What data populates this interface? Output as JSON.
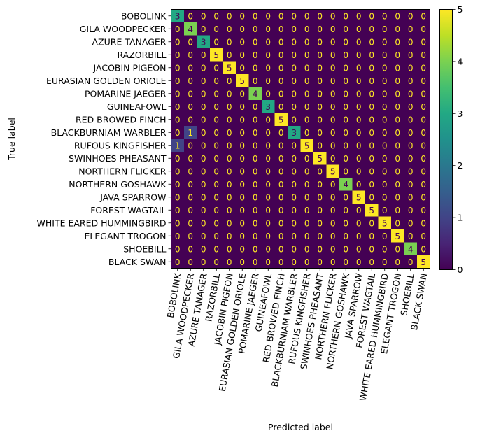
{
  "chart_data": {
    "type": "heatmap",
    "title": "",
    "xlabel": "Predicted label",
    "ylabel": "True label",
    "labels": [
      "BOBOLINK",
      "GILA WOODPECKER",
      "AZURE TANAGER",
      "RAZORBILL",
      "JACOBIN PIGEON",
      "EURASIAN GOLDEN ORIOLE",
      "POMARINE JAEGER",
      "GUINEAFOWL",
      "RED BROWED FINCH",
      "BLACKBURNIAM WARBLER",
      "RUFOUS KINGFISHER",
      "SWINHOES PHEASANT",
      "NORTHERN FLICKER",
      "NORTHERN GOSHAWK",
      "JAVA SPARROW",
      "FOREST WAGTAIL",
      "WHITE EARED HUMMINGBIRD",
      "ELEGANT TROGON",
      "SHOEBILL",
      "BLACK SWAN"
    ],
    "matrix": [
      [
        3,
        0,
        0,
        0,
        0,
        0,
        0,
        0,
        0,
        0,
        0,
        0,
        0,
        0,
        0,
        0,
        0,
        0,
        0,
        0
      ],
      [
        0,
        4,
        0,
        0,
        0,
        0,
        0,
        0,
        0,
        0,
        0,
        0,
        0,
        0,
        0,
        0,
        0,
        0,
        0,
        0
      ],
      [
        0,
        0,
        3,
        0,
        0,
        0,
        0,
        0,
        0,
        0,
        0,
        0,
        0,
        0,
        0,
        0,
        0,
        0,
        0,
        0
      ],
      [
        0,
        0,
        0,
        5,
        0,
        0,
        0,
        0,
        0,
        0,
        0,
        0,
        0,
        0,
        0,
        0,
        0,
        0,
        0,
        0
      ],
      [
        0,
        0,
        0,
        0,
        5,
        0,
        0,
        0,
        0,
        0,
        0,
        0,
        0,
        0,
        0,
        0,
        0,
        0,
        0,
        0
      ],
      [
        0,
        0,
        0,
        0,
        0,
        5,
        0,
        0,
        0,
        0,
        0,
        0,
        0,
        0,
        0,
        0,
        0,
        0,
        0,
        0
      ],
      [
        0,
        0,
        0,
        0,
        0,
        0,
        4,
        0,
        0,
        0,
        0,
        0,
        0,
        0,
        0,
        0,
        0,
        0,
        0,
        0
      ],
      [
        0,
        0,
        0,
        0,
        0,
        0,
        0,
        3,
        0,
        0,
        0,
        0,
        0,
        0,
        0,
        0,
        0,
        0,
        0,
        0
      ],
      [
        0,
        0,
        0,
        0,
        0,
        0,
        0,
        0,
        5,
        0,
        0,
        0,
        0,
        0,
        0,
        0,
        0,
        0,
        0,
        0
      ],
      [
        0,
        1,
        0,
        0,
        0,
        0,
        0,
        0,
        0,
        3,
        0,
        0,
        0,
        0,
        0,
        0,
        0,
        0,
        0,
        0
      ],
      [
        1,
        0,
        0,
        0,
        0,
        0,
        0,
        0,
        0,
        0,
        5,
        0,
        0,
        0,
        0,
        0,
        0,
        0,
        0,
        0
      ],
      [
        0,
        0,
        0,
        0,
        0,
        0,
        0,
        0,
        0,
        0,
        0,
        5,
        0,
        0,
        0,
        0,
        0,
        0,
        0,
        0
      ],
      [
        0,
        0,
        0,
        0,
        0,
        0,
        0,
        0,
        0,
        0,
        0,
        0,
        5,
        0,
        0,
        0,
        0,
        0,
        0,
        0
      ],
      [
        0,
        0,
        0,
        0,
        0,
        0,
        0,
        0,
        0,
        0,
        0,
        0,
        0,
        4,
        0,
        0,
        0,
        0,
        0,
        0
      ],
      [
        0,
        0,
        0,
        0,
        0,
        0,
        0,
        0,
        0,
        0,
        0,
        0,
        0,
        0,
        5,
        0,
        0,
        0,
        0,
        0
      ],
      [
        0,
        0,
        0,
        0,
        0,
        0,
        0,
        0,
        0,
        0,
        0,
        0,
        0,
        0,
        0,
        5,
        0,
        0,
        0,
        0
      ],
      [
        0,
        0,
        0,
        0,
        0,
        0,
        0,
        0,
        0,
        0,
        0,
        0,
        0,
        0,
        0,
        0,
        5,
        0,
        0,
        0
      ],
      [
        0,
        0,
        0,
        0,
        0,
        0,
        0,
        0,
        0,
        0,
        0,
        0,
        0,
        0,
        0,
        0,
        0,
        5,
        0,
        0
      ],
      [
        0,
        0,
        0,
        0,
        0,
        0,
        0,
        0,
        0,
        0,
        0,
        0,
        0,
        0,
        0,
        0,
        0,
        0,
        4,
        0
      ],
      [
        0,
        0,
        0,
        0,
        0,
        0,
        0,
        0,
        0,
        0,
        0,
        0,
        0,
        0,
        0,
        0,
        0,
        0,
        0,
        5
      ]
    ],
    "colormap": "viridis",
    "vmin": 0,
    "vmax": 5,
    "colorbar_ticks": [
      0,
      1,
      2,
      3,
      4,
      5
    ],
    "text_color_dark": "#fde725",
    "text_color_light": "#440154",
    "grid": false,
    "colorbar_placement": "right"
  }
}
